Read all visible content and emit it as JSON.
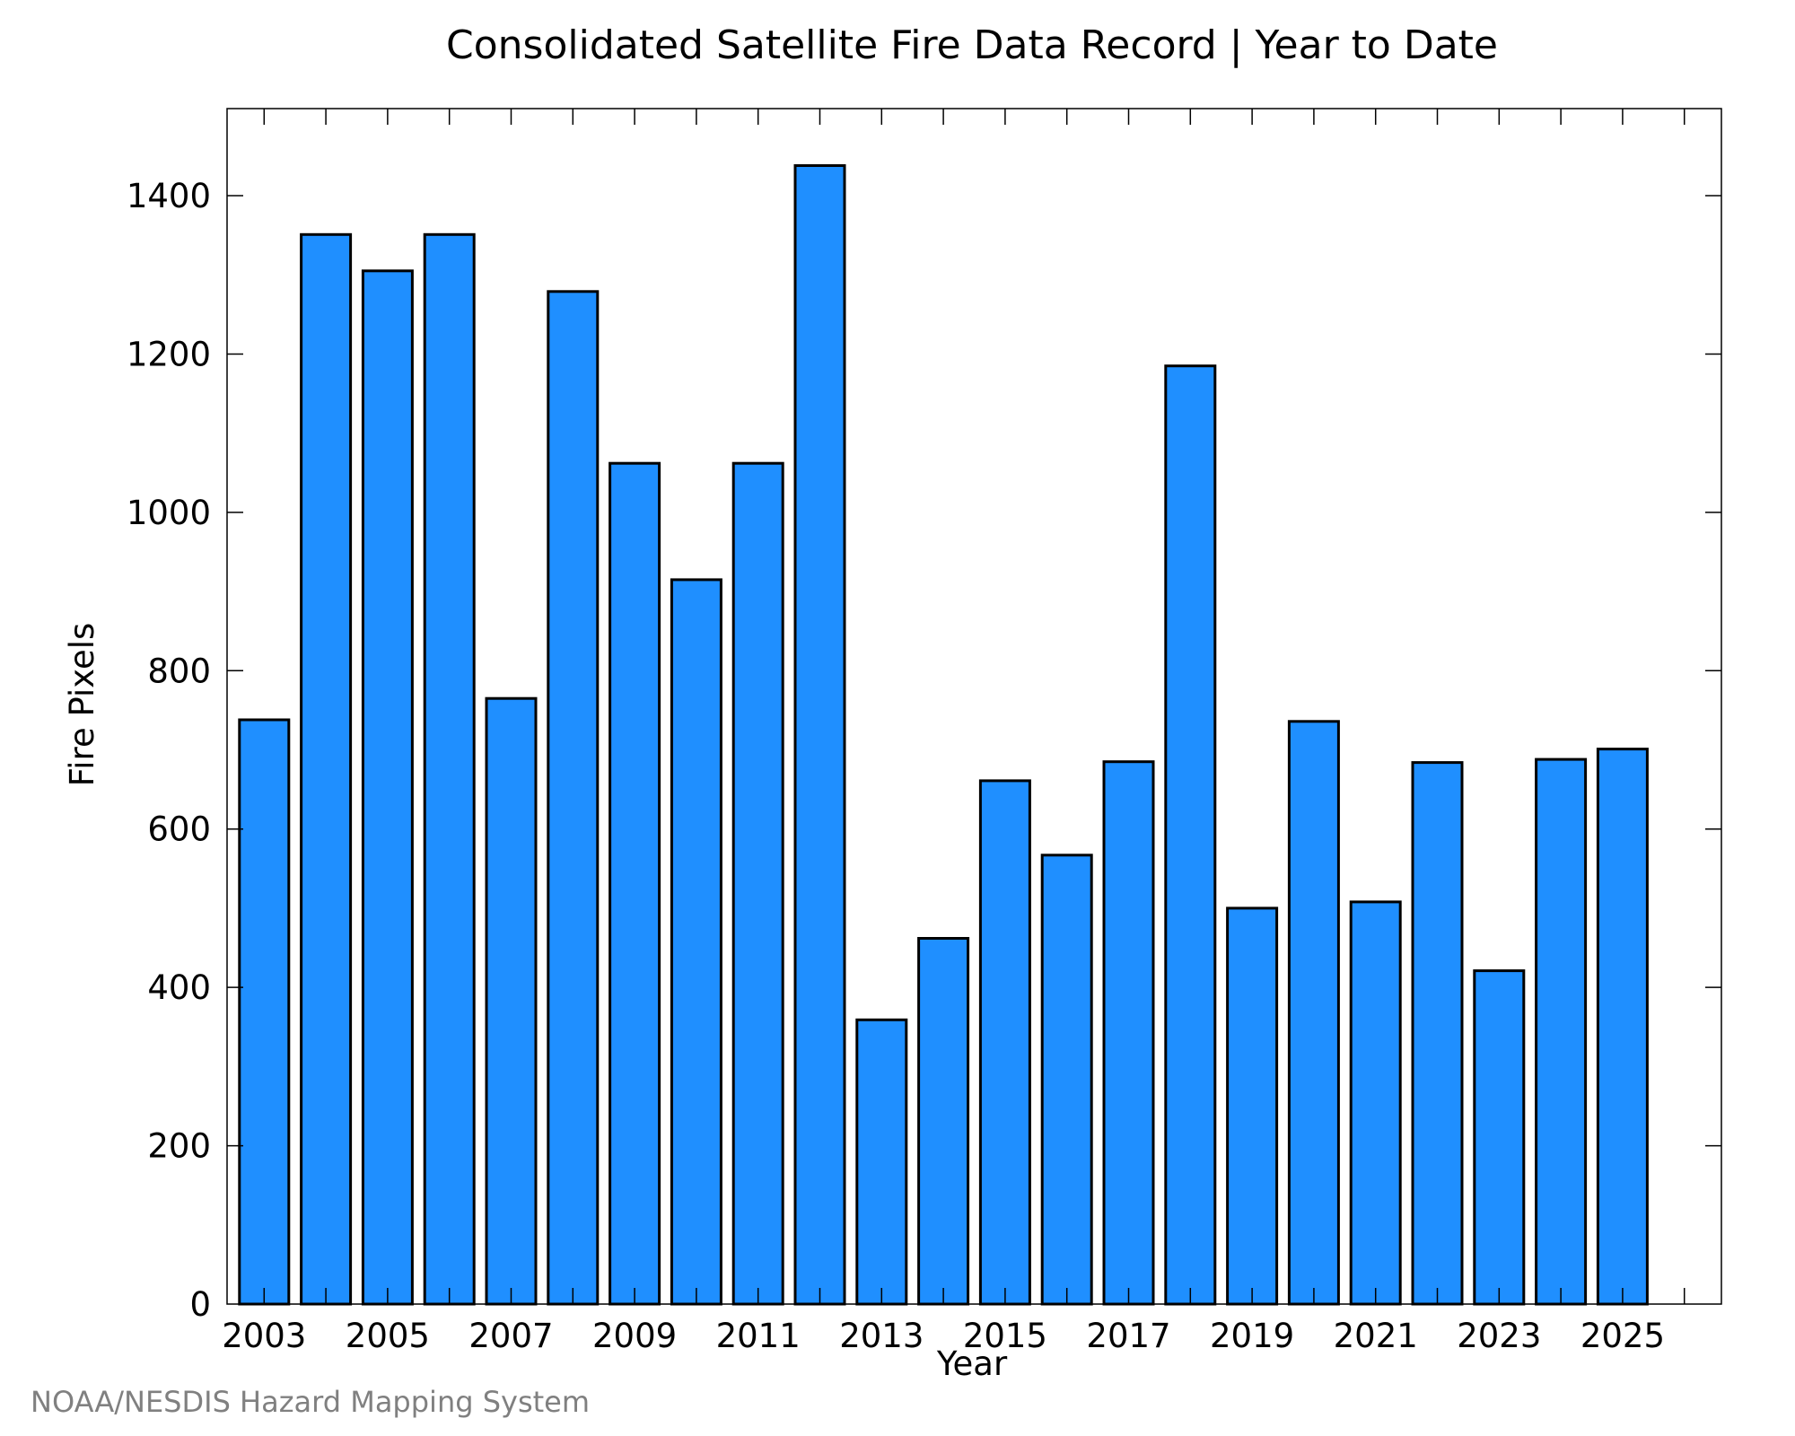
{
  "chart_data": {
    "type": "bar",
    "title": "Consolidated Satellite Fire Data Record | Year to Date",
    "xlabel": "Year",
    "ylabel": "Fire Pixels",
    "categories": [
      "2003",
      "2004",
      "2005",
      "2006",
      "2007",
      "2008",
      "2009",
      "2010",
      "2011",
      "2012",
      "2013",
      "2014",
      "2015",
      "2016",
      "2017",
      "2018",
      "2019",
      "2020",
      "2021",
      "2022",
      "2023",
      "2024",
      "2025"
    ],
    "x_tick_labels": [
      "2003",
      "2005",
      "2007",
      "2009",
      "2011",
      "2013",
      "2015",
      "2017",
      "2019",
      "2021",
      "2023",
      "2025"
    ],
    "y_tick_labels": [
      "0",
      "200",
      "400",
      "600",
      "800",
      "1000",
      "1200",
      "1400"
    ],
    "y_ticks": [
      0,
      200,
      400,
      600,
      800,
      1000,
      1200,
      1400
    ],
    "values": [
      738,
      1351,
      1305,
      1351,
      765,
      1279,
      1062,
      915,
      1062,
      1438,
      359,
      462,
      661,
      567,
      685,
      1185,
      500,
      736,
      508,
      684,
      421,
      688,
      701
    ],
    "ylim": [
      0,
      1510
    ],
    "bar_color": "#1f8fff",
    "grid": false,
    "legend": "none"
  },
  "credit": "NOAA/NESDIS Hazard Mapping System"
}
